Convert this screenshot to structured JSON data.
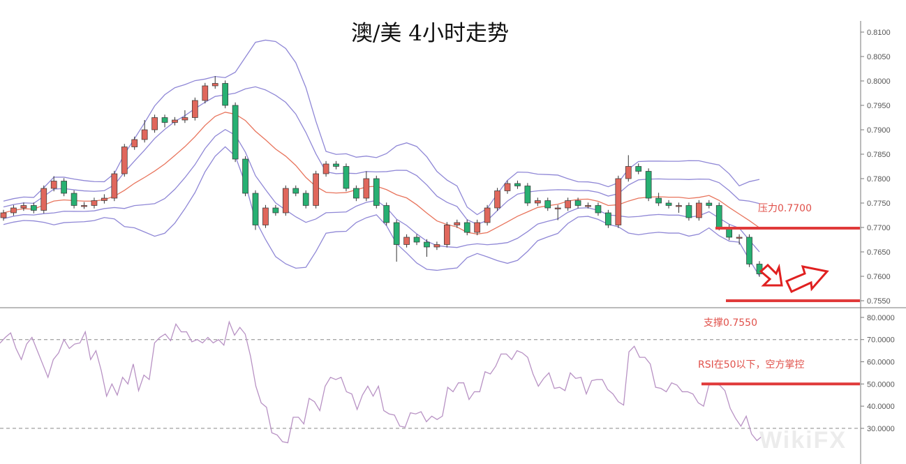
{
  "title": "澳/美 4小时走势",
  "watermark": "WikiFX",
  "annotations": {
    "resistance_label": "压力0.7700",
    "support_label": "支撑0.7550",
    "rsi_label": "RSI在50以下，空方掌控"
  },
  "colors": {
    "up": "#e0675c",
    "down": "#27b072",
    "band": "#8f87d6",
    "mid": "#e8745c",
    "rsi": "#b892c4",
    "marker": "#e03a3a"
  },
  "chart_data": [
    {
      "type": "candlestick",
      "title": "澳/美 4小时走势",
      "ylim": [
        0.7535,
        0.8115
      ],
      "yticks": [
        "0.8100",
        "0.8050",
        "0.8000",
        "0.7950",
        "0.7900",
        "0.7850",
        "0.7800",
        "0.7750",
        "0.7700",
        "0.7650",
        "0.7600",
        "0.7550"
      ],
      "overlays": [
        "Bollinger bands (1σ, 2σ)",
        "middle band"
      ],
      "levels": [
        {
          "label": "压力0.7700",
          "value": 0.77
        },
        {
          "label": "支撑0.7550",
          "value": 0.755
        }
      ],
      "candles_ohlc": [
        [
          0.772,
          0.7736,
          0.7714,
          0.773
        ],
        [
          0.773,
          0.7746,
          0.7724,
          0.774
        ],
        [
          0.774,
          0.7751,
          0.7734,
          0.7745
        ],
        [
          0.7745,
          0.7751,
          0.7729,
          0.7735
        ],
        [
          0.7735,
          0.7786,
          0.7729,
          0.778
        ],
        [
          0.778,
          0.7805,
          0.7774,
          0.7795
        ],
        [
          0.7795,
          0.7801,
          0.7764,
          0.777
        ],
        [
          0.777,
          0.7776,
          0.7739,
          0.7745
        ],
        [
          0.7745,
          0.7752,
          0.7738,
          0.7745
        ],
        [
          0.7745,
          0.7761,
          0.7739,
          0.7755
        ],
        [
          0.7755,
          0.7768,
          0.7749,
          0.776
        ],
        [
          0.776,
          0.7816,
          0.7754,
          0.781
        ],
        [
          0.781,
          0.7871,
          0.7804,
          0.7865
        ],
        [
          0.7865,
          0.7886,
          0.7859,
          0.788
        ],
        [
          0.788,
          0.792,
          0.7874,
          0.79
        ],
        [
          0.79,
          0.7931,
          0.7894,
          0.7925
        ],
        [
          0.7925,
          0.7931,
          0.7905,
          0.7915
        ],
        [
          0.7915,
          0.7926,
          0.7909,
          0.792
        ],
        [
          0.792,
          0.794,
          0.7914,
          0.7925
        ],
        [
          0.7925,
          0.7966,
          0.7919,
          0.796
        ],
        [
          0.796,
          0.7996,
          0.7954,
          0.799
        ],
        [
          0.799,
          0.801,
          0.7984,
          0.7995
        ],
        [
          0.7995,
          0.8001,
          0.7944,
          0.795
        ],
        [
          0.795,
          0.7956,
          0.7834,
          0.784
        ],
        [
          0.784,
          0.7846,
          0.7764,
          0.777
        ],
        [
          0.777,
          0.7776,
          0.7695,
          0.7705
        ],
        [
          0.7705,
          0.7746,
          0.7699,
          0.774
        ],
        [
          0.774,
          0.7746,
          0.7724,
          0.773
        ],
        [
          0.773,
          0.7786,
          0.7724,
          0.778
        ],
        [
          0.778,
          0.7786,
          0.7764,
          0.777
        ],
        [
          0.777,
          0.7776,
          0.7739,
          0.7745
        ],
        [
          0.7745,
          0.7816,
          0.7739,
          0.781
        ],
        [
          0.781,
          0.7836,
          0.7804,
          0.783
        ],
        [
          0.783,
          0.7836,
          0.7819,
          0.7825
        ],
        [
          0.7825,
          0.7831,
          0.7774,
          0.778
        ],
        [
          0.778,
          0.7786,
          0.7754,
          0.776
        ],
        [
          0.776,
          0.7815,
          0.7754,
          0.78
        ],
        [
          0.78,
          0.7806,
          0.7739,
          0.7745
        ],
        [
          0.7745,
          0.7751,
          0.7704,
          0.771
        ],
        [
          0.771,
          0.7716,
          0.763,
          0.7665
        ],
        [
          0.7665,
          0.7686,
          0.7659,
          0.768
        ],
        [
          0.768,
          0.7686,
          0.7664,
          0.767
        ],
        [
          0.767,
          0.7676,
          0.764,
          0.766
        ],
        [
          0.766,
          0.7671,
          0.7654,
          0.7665
        ],
        [
          0.7665,
          0.7711,
          0.7659,
          0.7705
        ],
        [
          0.7705,
          0.7716,
          0.7699,
          0.771
        ],
        [
          0.771,
          0.7716,
          0.7684,
          0.769
        ],
        [
          0.769,
          0.7716,
          0.7684,
          0.771
        ],
        [
          0.771,
          0.7746,
          0.7704,
          0.774
        ],
        [
          0.774,
          0.7781,
          0.7734,
          0.7775
        ],
        [
          0.7775,
          0.7796,
          0.7769,
          0.779
        ],
        [
          0.779,
          0.7796,
          0.7779,
          0.7785
        ],
        [
          0.7785,
          0.7791,
          0.7744,
          0.775
        ],
        [
          0.775,
          0.7761,
          0.7744,
          0.7755
        ],
        [
          0.7755,
          0.7761,
          0.7734,
          0.774
        ],
        [
          0.774,
          0.7746,
          0.7715,
          0.774
        ],
        [
          0.774,
          0.7761,
          0.7734,
          0.7755
        ],
        [
          0.7755,
          0.7761,
          0.7739,
          0.7745
        ],
        [
          0.7745,
          0.7751,
          0.7739,
          0.7745
        ],
        [
          0.7745,
          0.7751,
          0.7724,
          0.773
        ],
        [
          0.773,
          0.7736,
          0.7699,
          0.7705
        ],
        [
          0.7705,
          0.7806,
          0.7699,
          0.78
        ],
        [
          0.78,
          0.7848,
          0.7794,
          0.7825
        ],
        [
          0.7825,
          0.7831,
          0.7809,
          0.7815
        ],
        [
          0.7815,
          0.7821,
          0.7754,
          0.776
        ],
        [
          0.776,
          0.7771,
          0.7744,
          0.775
        ],
        [
          0.775,
          0.7756,
          0.7739,
          0.7745
        ],
        [
          0.7745,
          0.7751,
          0.773,
          0.7745
        ],
        [
          0.7745,
          0.7751,
          0.7714,
          0.772
        ],
        [
          0.772,
          0.7756,
          0.7714,
          0.775
        ],
        [
          0.775,
          0.7756,
          0.7739,
          0.7745
        ],
        [
          0.7745,
          0.7751,
          0.7694,
          0.77
        ],
        [
          0.77,
          0.7706,
          0.7674,
          0.768
        ],
        [
          0.768,
          0.7686,
          0.7665,
          0.768
        ],
        [
          0.768,
          0.7686,
          0.7619,
          0.7625
        ],
        [
          0.7625,
          0.7631,
          0.7599,
          0.7605
        ]
      ]
    },
    {
      "type": "line",
      "ylim": [
        22,
        82
      ],
      "yticks": [
        "80.0000",
        "70.0000",
        "60.0000",
        "50.0000",
        "40.0000",
        "30.0000"
      ],
      "reference_lines": [
        70,
        30
      ],
      "level": {
        "label": "RSI在50以下，空方掌控",
        "value": 50
      },
      "rsi": [
        68.4,
        71,
        73,
        66,
        61,
        68,
        71,
        65,
        59,
        53,
        61,
        64,
        70,
        66,
        68,
        68.5,
        73.5,
        61,
        65,
        56,
        44.5,
        50,
        45,
        53,
        50,
        59,
        47,
        54,
        52,
        68.5,
        71,
        72.5,
        69.5,
        77,
        73.5,
        73.5,
        69,
        70,
        68.5,
        71,
        68.5,
        70,
        67.5,
        78,
        72,
        75.5,
        72.5,
        62.5,
        49,
        41.5,
        39.5,
        28,
        27,
        24,
        23.5,
        35,
        35,
        32,
        43.5,
        42,
        38,
        49,
        53,
        52,
        53,
        46.5,
        45.5,
        38.5,
        45,
        49,
        44.5,
        49,
        38,
        36.5,
        36,
        31,
        30.5,
        37,
        36.5,
        37.5,
        33,
        35.5,
        34,
        35.5,
        48.5,
        46.5,
        50.5,
        50.5,
        43,
        46.5,
        46.5,
        55.5,
        54.5,
        58,
        63.5,
        63.5,
        61,
        65,
        64,
        62,
        54.5,
        49,
        52.5,
        55,
        48,
        48.5,
        47,
        55,
        52.5,
        53,
        45.5,
        51.5,
        52,
        52,
        47.5,
        45.5,
        42,
        40.5,
        64.5,
        67,
        62,
        62,
        59,
        48.5,
        48,
        46.5,
        50.5,
        49.5,
        46.5,
        46.5,
        45.5,
        41.5,
        40,
        49.5,
        50,
        49.5,
        47,
        39,
        34.5,
        31,
        35.5,
        27.5,
        24.5,
        26.5
      ]
    }
  ]
}
